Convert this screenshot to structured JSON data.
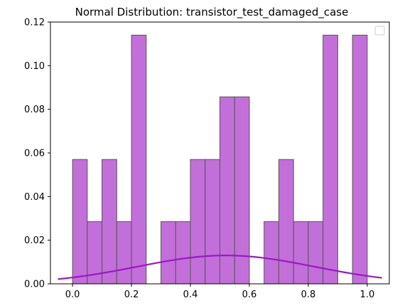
{
  "chart_data": {
    "type": "bar",
    "title": "Normal Distribution: transistor_test_damaged_case",
    "xlabel": "",
    "ylabel": "",
    "xlim": [
      -0.075,
      1.075
    ],
    "ylim": [
      0,
      0.12
    ],
    "xticks": [
      "0.0",
      "0.2",
      "0.4",
      "0.6",
      "0.8",
      "1.0"
    ],
    "yticks": [
      "0.00",
      "0.02",
      "0.04",
      "0.06",
      "0.08",
      "0.10",
      "0.12"
    ],
    "grid": false,
    "legend": "top-right",
    "histogram": {
      "bin_edges": [
        0.0,
        0.05,
        0.1,
        0.15,
        0.2,
        0.25,
        0.3,
        0.35,
        0.4,
        0.45,
        0.5,
        0.55,
        0.6,
        0.65,
        0.7,
        0.75,
        0.8,
        0.85,
        0.9,
        0.95,
        1.0
      ],
      "values": [
        0.057,
        0.0285,
        0.057,
        0.0285,
        0.114,
        0,
        0.0285,
        0.0285,
        0.057,
        0.057,
        0.0857,
        0.0857,
        0,
        0.0285,
        0.057,
        0.0285,
        0.0285,
        0.114,
        0,
        0.114
      ],
      "fill_color": "#c36fd9",
      "edge_color": "#555555"
    },
    "curve": {
      "mean": 0.52,
      "std": 0.3,
      "scale": 0.01,
      "x_range": [
        -0.05,
        1.05
      ],
      "color": "#9a17c7"
    }
  }
}
